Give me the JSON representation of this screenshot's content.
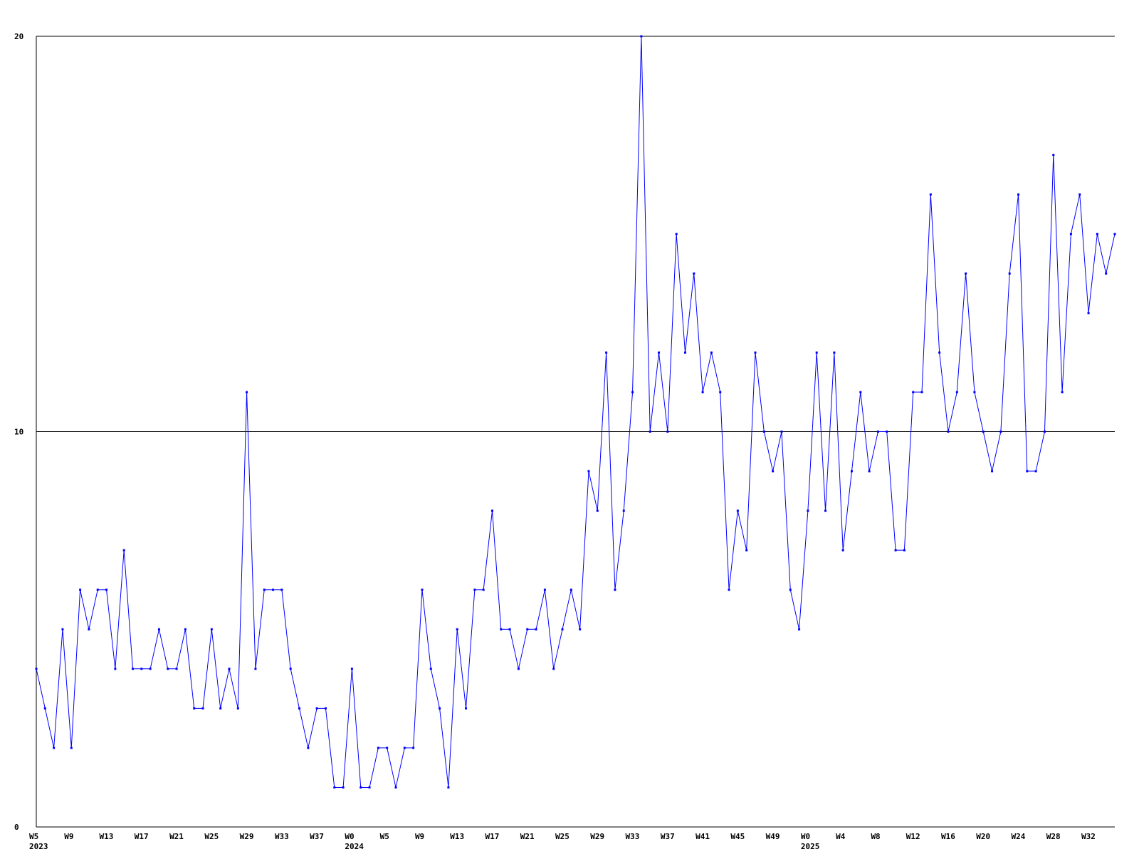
{
  "chart_data": {
    "type": "line",
    "categories": [
      "W5",
      null,
      null,
      null,
      "W9",
      null,
      null,
      null,
      "W13",
      null,
      null,
      null,
      "W17",
      null,
      null,
      null,
      "W21",
      null,
      null,
      null,
      "W25",
      null,
      null,
      null,
      "W29",
      null,
      null,
      null,
      "W33",
      null,
      null,
      null,
      "W37",
      null,
      null,
      null,
      "W0",
      null,
      null,
      null,
      "W5",
      null,
      null,
      null,
      "W9",
      null,
      null,
      null,
      "W13",
      null,
      null,
      null,
      "W17",
      null,
      null,
      null,
      "W21",
      null,
      null,
      null,
      "W25",
      null,
      null,
      null,
      "W29",
      null,
      null,
      null,
      "W33",
      null,
      null,
      null,
      "W37",
      null,
      null,
      null,
      "W41",
      null,
      null,
      null,
      "W45",
      null,
      null,
      null,
      "W49",
      null,
      null,
      null,
      "W0",
      null,
      null,
      null,
      "W4",
      null,
      null,
      null,
      "W8",
      null,
      null,
      null,
      "W12",
      null,
      null,
      null,
      "W16",
      null,
      null,
      null,
      "W20",
      null,
      null,
      null,
      "W24",
      null,
      null,
      null,
      "W28",
      null,
      null,
      null,
      "W32",
      null,
      null,
      null
    ],
    "years": [
      "2023",
      null,
      null,
      null,
      null,
      null,
      null,
      null,
      null,
      null,
      null,
      null,
      null,
      null,
      null,
      null,
      null,
      null,
      null,
      null,
      null,
      null,
      null,
      null,
      null,
      null,
      null,
      null,
      null,
      null,
      null,
      null,
      null,
      null,
      null,
      null,
      "2024",
      null,
      null,
      null,
      null,
      null,
      null,
      null,
      null,
      null,
      null,
      null,
      null,
      null,
      null,
      null,
      null,
      null,
      null,
      null,
      null,
      null,
      null,
      null,
      null,
      null,
      null,
      null,
      null,
      null,
      null,
      null,
      null,
      null,
      null,
      null,
      null,
      null,
      null,
      null,
      null,
      null,
      null,
      null,
      null,
      null,
      null,
      null,
      null,
      null,
      null,
      null,
      "2025",
      null,
      null,
      null,
      null,
      null,
      null,
      null,
      null,
      null,
      null,
      null,
      null,
      null,
      null,
      null,
      null,
      null,
      null,
      null,
      null,
      null,
      null,
      null,
      null,
      null,
      null,
      null,
      null,
      null,
      null,
      null,
      null,
      null,
      null,
      null
    ],
    "values": [
      4,
      3,
      2,
      5,
      2,
      6,
      5,
      6,
      6,
      4,
      7,
      4,
      4,
      4,
      5,
      4,
      4,
      5,
      3,
      3,
      5,
      3,
      4,
      3,
      11,
      4,
      6,
      6,
      6,
      4,
      3,
      2,
      3,
      3,
      1,
      1,
      4,
      1,
      1,
      2,
      2,
      1,
      2,
      2,
      6,
      4,
      3,
      1,
      5,
      3,
      6,
      6,
      8,
      5,
      5,
      4,
      5,
      5,
      6,
      4,
      5,
      6,
      5,
      9,
      8,
      12,
      6,
      8,
      11,
      20,
      10,
      12,
      10,
      15,
      12,
      14,
      11,
      12,
      11,
      6,
      8,
      7,
      12,
      10,
      9,
      10,
      6,
      5,
      8,
      12,
      8,
      12,
      7,
      9,
      11,
      9,
      10,
      10,
      7,
      7,
      11,
      11,
      16,
      12,
      10,
      11,
      14,
      11,
      10,
      9,
      10,
      14,
      16,
      9,
      9,
      10,
      17,
      11,
      15,
      16,
      13,
      15,
      14,
      15
    ],
    "color": "#0000ff",
    "ylim": [
      0,
      20
    ],
    "yticks": [
      0,
      10,
      20
    ],
    "grid": true
  }
}
